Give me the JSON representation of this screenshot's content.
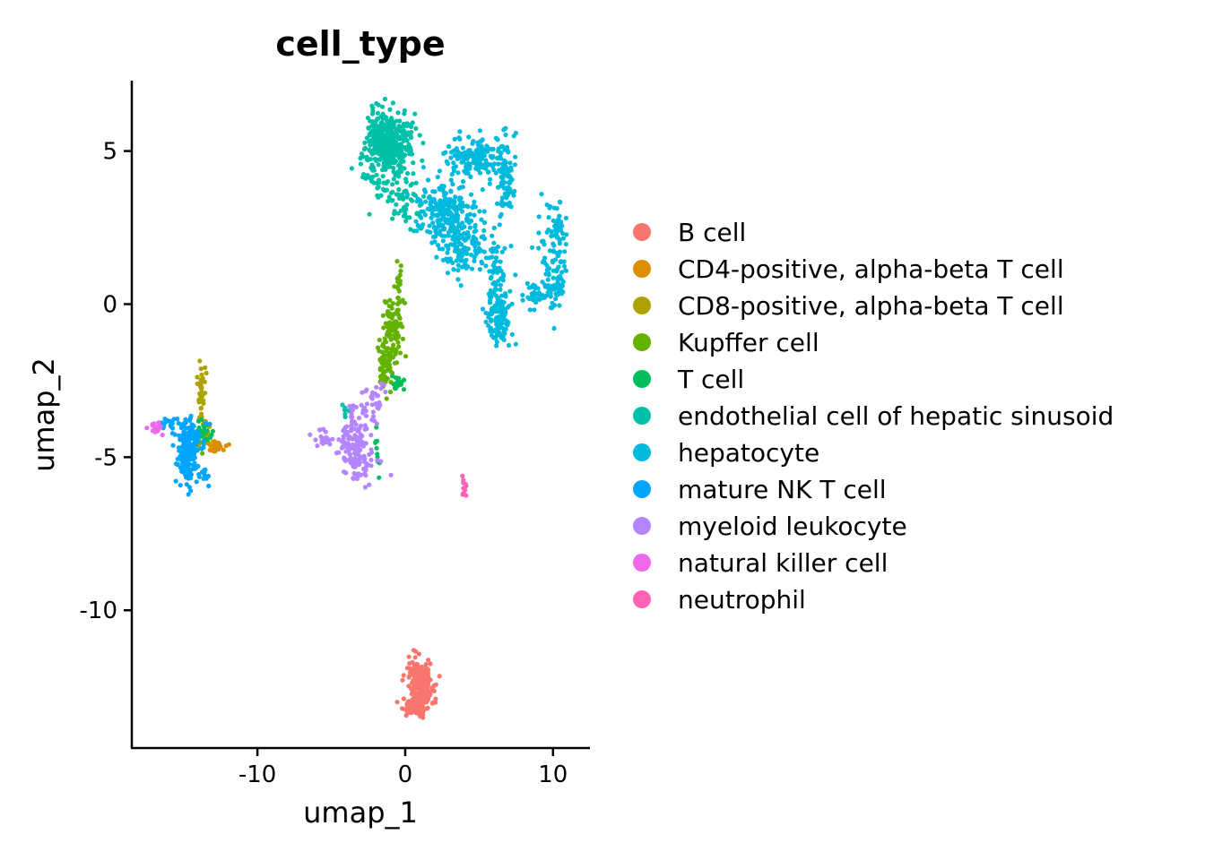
{
  "chart_data": {
    "type": "scatter",
    "title": "cell_type",
    "xlabel": "umap_1",
    "ylabel": "umap_2",
    "xlim": [
      -18.5,
      12.5
    ],
    "ylim": [
      -14.5,
      7.3
    ],
    "x_ticks": [
      -10,
      0,
      10
    ],
    "y_ticks": [
      5,
      0,
      -5,
      -10
    ],
    "x_tick_labels": [
      "-10",
      "0",
      "10"
    ],
    "y_tick_labels": [
      "5",
      "0",
      "-5",
      "-10"
    ],
    "grid": false,
    "legend_position": "right",
    "series": [
      {
        "name": "B cell",
        "color": "#F8766D",
        "clusters": [
          {
            "cx": 1.0,
            "cy": -12.6,
            "sx": 0.45,
            "sy": 0.35,
            "n": 220
          },
          {
            "cx": 0.9,
            "cy": -12.0,
            "sx": 0.3,
            "sy": 0.25,
            "n": 60
          },
          {
            "cx": 0.5,
            "cy": -13.2,
            "sx": 0.4,
            "sy": 0.12,
            "n": 60
          }
        ]
      },
      {
        "name": "CD4-positive, alpha-beta T cell",
        "color": "#DB8E00",
        "clusters": [
          {
            "cx": -12.8,
            "cy": -4.65,
            "sx": 0.3,
            "sy": 0.12,
            "n": 30
          }
        ]
      },
      {
        "name": "CD8-positive, alpha-beta T cell",
        "color": "#AEA200",
        "clusters": [
          {
            "cx": -13.8,
            "cy": -2.9,
            "sx": 0.15,
            "sy": 0.5,
            "n": 40
          },
          {
            "cx": -13.6,
            "cy": -4.3,
            "sx": 0.3,
            "sy": 0.2,
            "n": 20
          }
        ]
      },
      {
        "name": "Kupffer cell",
        "color": "#64B200",
        "clusters": [
          {
            "cx": -0.8,
            "cy": -0.7,
            "sx": 0.35,
            "sy": 0.5,
            "n": 100
          },
          {
            "cx": -1.4,
            "cy": -2.0,
            "sx": 0.3,
            "sy": 0.45,
            "n": 60
          },
          {
            "cx": -0.4,
            "cy": 0.6,
            "sx": 0.15,
            "sy": 0.5,
            "n": 15
          },
          {
            "cx": -13.9,
            "cy": -4.3,
            "sx": 0.25,
            "sy": 0.2,
            "n": 12
          }
        ]
      },
      {
        "name": "T cell",
        "color": "#00BD5C",
        "clusters": [
          {
            "cx": -0.5,
            "cy": -2.6,
            "sx": 0.3,
            "sy": 0.15,
            "n": 15
          },
          {
            "cx": -13.7,
            "cy": -4.2,
            "sx": 0.4,
            "sy": 0.2,
            "n": 20
          },
          {
            "cx": -1.9,
            "cy": -4.8,
            "sx": 0.1,
            "sy": 0.35,
            "n": 10
          }
        ]
      },
      {
        "name": "endothelial cell of hepatic sinusoid",
        "color": "#00C1A7",
        "clusters": [
          {
            "cx": -1.2,
            "cy": 5.3,
            "sx": 0.75,
            "sy": 0.45,
            "n": 450
          },
          {
            "cx": -1.1,
            "cy": 3.9,
            "sx": 0.8,
            "sy": 0.5,
            "n": 60
          },
          {
            "cx": 0.2,
            "cy": 3.2,
            "sx": 0.7,
            "sy": 0.5,
            "n": 40
          },
          {
            "cx": -4.0,
            "cy": -3.5,
            "sx": 0.15,
            "sy": 0.1,
            "n": 6
          }
        ]
      },
      {
        "name": "hepatocyte",
        "color": "#00BADE",
        "clusters": [
          {
            "cx": 4.8,
            "cy": 4.8,
            "sx": 0.9,
            "sy": 0.35,
            "n": 160
          },
          {
            "cx": 6.8,
            "cy": 4.0,
            "sx": 0.35,
            "sy": 0.7,
            "n": 80
          },
          {
            "cx": 2.8,
            "cy": 3.0,
            "sx": 1.0,
            "sy": 0.45,
            "n": 220
          },
          {
            "cx": 3.8,
            "cy": 1.9,
            "sx": 0.9,
            "sy": 0.45,
            "n": 130
          },
          {
            "cx": 6.2,
            "cy": 0.8,
            "sx": 0.4,
            "sy": 0.9,
            "n": 90
          },
          {
            "cx": 6.3,
            "cy": -0.6,
            "sx": 0.45,
            "sy": 0.45,
            "n": 80
          },
          {
            "cx": 10.4,
            "cy": 2.2,
            "sx": 0.3,
            "sy": 0.6,
            "n": 60
          },
          {
            "cx": 10.2,
            "cy": 0.6,
            "sx": 0.4,
            "sy": 0.45,
            "n": 60
          },
          {
            "cx": 8.8,
            "cy": 0.2,
            "sx": 0.5,
            "sy": 0.2,
            "n": 30
          },
          {
            "cx": 9.5,
            "cy": 1.6,
            "sx": 0.3,
            "sy": 0.8,
            "n": 20
          }
        ]
      },
      {
        "name": "mature NK T cell",
        "color": "#00A5FF",
        "clusters": [
          {
            "cx": -14.7,
            "cy": -5.0,
            "sx": 0.3,
            "sy": 0.4,
            "n": 170
          },
          {
            "cx": -14.6,
            "cy": -4.2,
            "sx": 0.5,
            "sy": 0.25,
            "n": 60
          },
          {
            "cx": -16.0,
            "cy": -3.9,
            "sx": 0.4,
            "sy": 0.12,
            "n": 18
          },
          {
            "cx": -13.6,
            "cy": -5.6,
            "sx": 0.2,
            "sy": 0.15,
            "n": 12
          }
        ]
      },
      {
        "name": "myeloid leukocyte",
        "color": "#B385FF",
        "clusters": [
          {
            "cx": -3.5,
            "cy": -4.3,
            "sx": 0.5,
            "sy": 0.5,
            "n": 90
          },
          {
            "cx": -3.0,
            "cy": -5.2,
            "sx": 0.6,
            "sy": 0.3,
            "n": 60
          },
          {
            "cx": -5.5,
            "cy": -4.4,
            "sx": 0.4,
            "sy": 0.15,
            "n": 20
          },
          {
            "cx": -2.0,
            "cy": -3.2,
            "sx": 0.5,
            "sy": 0.35,
            "n": 30
          }
        ]
      },
      {
        "name": "natural killer cell",
        "color": "#EF67EB",
        "clusters": [
          {
            "cx": -16.8,
            "cy": -4.05,
            "sx": 0.2,
            "sy": 0.15,
            "n": 20
          }
        ]
      },
      {
        "name": "neutrophil",
        "color": "#FF63B6",
        "clusters": [
          {
            "cx": 4.0,
            "cy": -6.0,
            "sx": 0.08,
            "sy": 0.15,
            "n": 12
          }
        ]
      }
    ]
  }
}
